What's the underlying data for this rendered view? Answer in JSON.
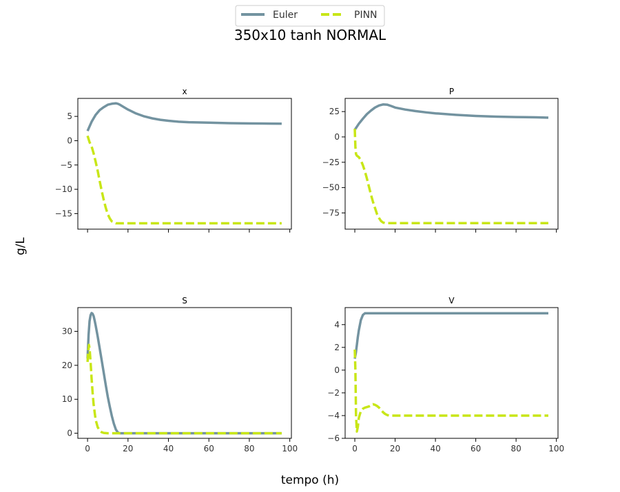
{
  "chart_data": {
    "type": "line",
    "title": "350x10 tanh NORMAL",
    "xlabel": "tempo (h)",
    "ylabel": "g/L",
    "legend": {
      "placement": "top-center",
      "entries": [
        {
          "name": "Euler",
          "color": "#7393a0",
          "style": "solid"
        },
        {
          "name": "PINN",
          "color": "#c8e617",
          "style": "dashed"
        }
      ]
    },
    "grid": false,
    "subplots": [
      {
        "title": "x",
        "xlim": [
          -4.8,
          100.8
        ],
        "ylim": [
          -18.2,
          8.7
        ],
        "yticks": [
          5,
          0,
          -5,
          -10,
          -15
        ],
        "ytick_labels": [
          "5",
          "0",
          "−5",
          "−10",
          "−15"
        ],
        "xticks": [
          0,
          20,
          40,
          60,
          80,
          100
        ],
        "xtick_labels": [],
        "series": [
          {
            "name": "Euler",
            "x": [
              0,
              2,
              4,
              6,
              8,
              10,
              12,
              14,
              15,
              16,
              18,
              20,
              24,
              28,
              32,
              36,
              40,
              45,
              50,
              60,
              70,
              80,
              90,
              96
            ],
            "y": [
              2,
              3.9,
              5.3,
              6.3,
              6.9,
              7.4,
              7.6,
              7.7,
              7.6,
              7.4,
              6.9,
              6.4,
              5.6,
              5.0,
              4.6,
              4.3,
              4.1,
              3.9,
              3.8,
              3.7,
              3.6,
              3.55,
              3.52,
              3.5
            ]
          },
          {
            "name": "PINN",
            "x": [
              0,
              1,
              2,
              3,
              4,
              5,
              6,
              7,
              8,
              9,
              10,
              11,
              12,
              13,
              14,
              15,
              16,
              17,
              18,
              20,
              30,
              50,
              70,
              96
            ],
            "y": [
              1,
              -0.3,
              -1.2,
              -2.6,
              -4.3,
              -6.2,
              -8.3,
              -10.3,
              -12.2,
              -13.8,
              -15.1,
              -16.0,
              -16.6,
              -16.8,
              -17.0,
              -17.0,
              -17.0,
              -17.0,
              -17.0,
              -17.0,
              -17.0,
              -17.0,
              -17.0,
              -17.0
            ]
          }
        ]
      },
      {
        "title": "P",
        "xlim": [
          -4.8,
          100.8
        ],
        "ylim": [
          -91,
          38
        ],
        "yticks": [
          25,
          0,
          -25,
          -50,
          -75
        ],
        "ytick_labels": [
          "25",
          "0",
          "−25",
          "−50",
          "−75"
        ],
        "xticks": [
          0,
          20,
          40,
          60,
          80,
          100
        ],
        "xtick_labels": [],
        "series": [
          {
            "name": "Euler",
            "x": [
              0,
              2,
              4,
              6,
              8,
              10,
              12,
              14,
              16,
              18,
              20,
              25,
              30,
              35,
              40,
              50,
              60,
              70,
              80,
              90,
              96
            ],
            "y": [
              7,
              13,
              18,
              22.5,
              26,
              29,
              31,
              32,
              31.8,
              30.5,
              29,
              27,
              25.5,
              24.3,
              23.3,
              21.8,
              20.7,
              20,
              19.6,
              19.3,
              19
            ]
          },
          {
            "name": "PINN",
            "x": [
              0,
              0.3,
              0.6,
              1,
              2,
              3,
              4,
              5,
              6,
              7,
              8,
              9,
              10,
              11,
              12,
              13,
              14,
              15,
              16,
              18,
              20,
              40,
              60,
              80,
              96
            ],
            "y": [
              8,
              -10,
              -17,
              -18.5,
              -20,
              -23,
              -28,
              -34,
              -41,
              -49,
              -57,
              -64,
              -70,
              -76,
              -80,
              -83,
              -84.5,
              -85,
              -85,
              -85,
              -85,
              -85,
              -85,
              -85,
              -85
            ]
          }
        ]
      },
      {
        "title": "S",
        "xlim": [
          -4.8,
          100.8
        ],
        "ylim": [
          -1.5,
          37
        ],
        "yticks": [
          30,
          20,
          10,
          0
        ],
        "ytick_labels": [
          "30",
          "20",
          "10",
          "0"
        ],
        "xticks": [
          0,
          20,
          40,
          60,
          80,
          100
        ],
        "xtick_labels": [
          "0",
          "20",
          "40",
          "60",
          "80",
          "100"
        ],
        "series": [
          {
            "name": "Euler",
            "x": [
              0,
              0.5,
              1,
              1.5,
              2,
              2.5,
              3,
              3.5,
              4,
              5,
              6,
              7,
              8,
              9,
              10,
              11,
              12,
              13,
              14,
              15,
              16,
              17,
              18,
              20,
              40,
              60,
              80,
              96
            ],
            "y": [
              22,
              29,
              33,
              34.8,
              35.4,
              35.2,
              34.5,
              33.2,
              31.8,
              28.5,
              25,
              21.5,
              17.8,
              14.2,
              10.8,
              7.8,
              5.1,
              2.8,
              1.1,
              0.2,
              0,
              0,
              0,
              0,
              0,
              0,
              0,
              0
            ]
          },
          {
            "name": "PINN",
            "x": [
              0,
              0.3,
              0.7,
              1,
              1.5,
              2,
              2.5,
              3,
              4,
              5,
              6,
              7,
              8,
              10,
              12,
              15,
              20,
              40,
              60,
              80,
              96
            ],
            "y": [
              21,
              24,
              26,
              25,
              21,
              16,
              12,
              8.5,
              4,
              1.8,
              0.8,
              0.3,
              0.1,
              0,
              0,
              0,
              0,
              0,
              0,
              0,
              0
            ]
          }
        ]
      },
      {
        "title": "V",
        "xlim": [
          -4.8,
          100.8
        ],
        "ylim": [
          -6,
          5.5
        ],
        "yticks": [
          4,
          2,
          0,
          -2,
          -4,
          -6
        ],
        "ytick_labels": [
          "4",
          "2",
          "0",
          "−2",
          "−4",
          "−6"
        ],
        "xticks": [
          0,
          20,
          40,
          60,
          80,
          100
        ],
        "xtick_labels": [
          "0",
          "20",
          "40",
          "60",
          "80",
          "100"
        ],
        "series": [
          {
            "name": "Euler",
            "x": [
              0,
              0.5,
              1,
              1.5,
              2,
              3,
              4,
              5,
              6,
              8,
              10,
              20,
              40,
              60,
              80,
              96
            ],
            "y": [
              1,
              1.5,
              2.2,
              2.9,
              3.5,
              4.4,
              4.85,
              5,
              5,
              5,
              5,
              5,
              5,
              5,
              5,
              5
            ]
          },
          {
            "name": "PINN",
            "x": [
              0,
              0.3,
              0.6,
              1,
              1.5,
              2,
              3,
              4,
              5,
              6,
              7,
              8,
              9,
              10,
              11,
              12,
              13,
              14,
              15,
              16,
              17,
              18,
              20,
              30,
              50,
              70,
              96
            ],
            "y": [
              1.8,
              0,
              -4,
              -5.4,
              -5,
              -4.2,
              -3.6,
              -3.4,
              -3.3,
              -3.25,
              -3.2,
              -3.1,
              -3.0,
              -3.05,
              -3.15,
              -3.3,
              -3.5,
              -3.7,
              -3.85,
              -3.95,
              -4.0,
              -4.0,
              -4.0,
              -4.0,
              -4.0,
              -4.0,
              -4.0
            ]
          }
        ]
      }
    ]
  }
}
